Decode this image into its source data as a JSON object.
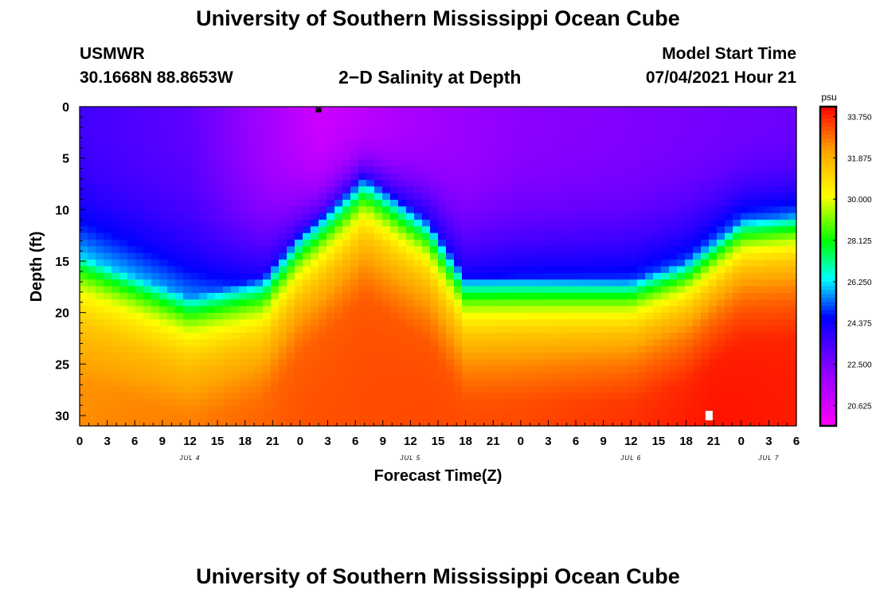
{
  "page": {
    "title_top": "University of Southern Mississippi Ocean Cube",
    "title_bottom": "University of Southern Mississippi Ocean Cube",
    "station": "USMWR",
    "location": "30.1668N  88.8653W",
    "plot_title": "2−D Salinity at Depth",
    "model_start_label": "Model Start Time",
    "model_start_value": "07/04/2021 Hour 21"
  },
  "chart_data": {
    "type": "heatmap",
    "xlabel": "Forecast Time(Z)",
    "ylabel": "Depth (ft)",
    "x_hours_ticks": [
      "0",
      "3",
      "6",
      "9",
      "12",
      "15",
      "18",
      "21",
      "0",
      "3",
      "6",
      "9",
      "12",
      "15",
      "18",
      "21",
      "0",
      "3",
      "6",
      "9",
      "12",
      "15",
      "18",
      "21",
      "0",
      "3",
      "6"
    ],
    "date_labels": [
      "JUL 4",
      "JUL 5",
      "JUL 6",
      "JUL 7"
    ],
    "y_ticks": [
      0,
      5,
      10,
      15,
      20,
      25,
      30
    ],
    "y_range": [
      0,
      31
    ],
    "colorbar": {
      "unit": "psu",
      "ticks": [
        "33.750",
        "31.875",
        "30.000",
        "28.125",
        "26.250",
        "24.375",
        "22.500",
        "20.625"
      ],
      "range": [
        19.7,
        34.2
      ]
    },
    "field_model": {
      "description_x_units": "hours since 00Z JUL 4",
      "x_range": [
        0,
        78
      ],
      "halocline_depth_ft": [
        [
          0,
          14.5
        ],
        [
          12,
          18.5
        ],
        [
          20,
          16.5
        ],
        [
          24,
          12
        ],
        [
          31,
          6.5
        ],
        [
          38,
          11
        ],
        [
          42,
          16.5
        ],
        [
          60,
          16.8
        ],
        [
          66,
          15
        ],
        [
          72,
          11
        ],
        [
          78,
          10.5
        ]
      ],
      "surface_salinity_psu": [
        [
          0,
          23.5
        ],
        [
          12,
          23.0
        ],
        [
          26,
          20.8
        ],
        [
          36,
          21.6
        ],
        [
          48,
          22.2
        ],
        [
          60,
          22.4
        ],
        [
          78,
          22.8
        ]
      ],
      "deep_salinity_psu": [
        [
          0,
          32.5
        ],
        [
          12,
          32.8
        ],
        [
          24,
          33.2
        ],
        [
          36,
          33.3
        ],
        [
          48,
          33.4
        ],
        [
          60,
          33.7
        ],
        [
          69,
          34.0
        ],
        [
          78,
          33.9
        ]
      ]
    }
  }
}
